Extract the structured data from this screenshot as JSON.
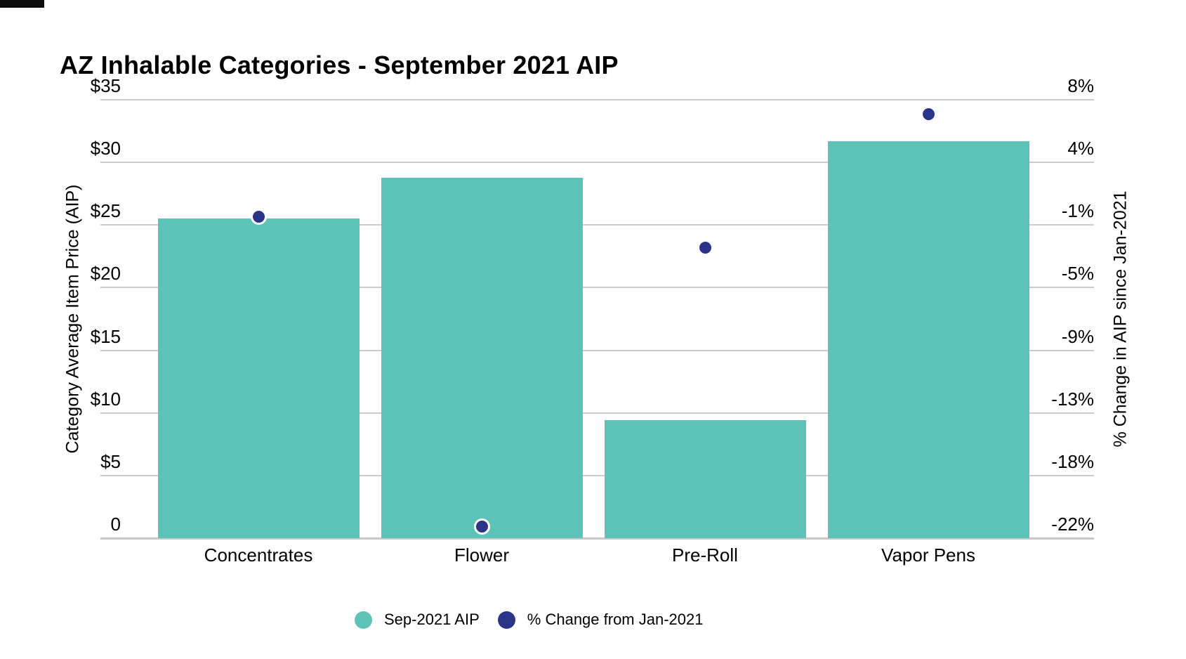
{
  "chart_data": {
    "type": "bar",
    "title": "AZ Inhalable Categories - September 2021 AIP",
    "categories": [
      "Concentrates",
      "Flower",
      "Pre-Roll",
      "Vapor Pens"
    ],
    "series": [
      {
        "name": "Sep-2021 AIP",
        "type": "bar",
        "axis": "left",
        "color": "#5DC2B8",
        "values": [
          25.5,
          28.8,
          9.4,
          31.7
        ]
      },
      {
        "name": "% Change from Jan-2021",
        "type": "point",
        "axis": "right",
        "color": "#2B3588",
        "values": [
          0.0,
          -21.2,
          -2.1,
          7.0
        ]
      }
    ],
    "left_axis": {
      "title": "Category Average Item Price (AIP)",
      "min": 0,
      "max": 35,
      "ticks": [
        {
          "label": "$35",
          "value": 35
        },
        {
          "label": "$30",
          "value": 30
        },
        {
          "label": "$25",
          "value": 25
        },
        {
          "label": "$20",
          "value": 20
        },
        {
          "label": "$15",
          "value": 15
        },
        {
          "label": "$10",
          "value": 10
        },
        {
          "label": "$5",
          "value": 5
        },
        {
          "label": "0",
          "value": 0
        }
      ]
    },
    "right_axis": {
      "title": "% Change in AIP since Jan-2021",
      "min": -22,
      "max": 8,
      "ticks": [
        {
          "label": "8%",
          "value": 8
        },
        {
          "label": "4%",
          "value": 4
        },
        {
          "label": "-1%",
          "value": -1
        },
        {
          "label": "-5%",
          "value": -5
        },
        {
          "label": "-9%",
          "value": -9
        },
        {
          "label": "-13%",
          "value": -13
        },
        {
          "label": "-18%",
          "value": -18
        },
        {
          "label": "-22%",
          "value": -22
        }
      ]
    },
    "legend": {
      "position": "bottom"
    },
    "grid": true,
    "colors": {
      "bar": "#5DC2B8",
      "point": "#2B3588",
      "gridline": "#cccccc",
      "text": "#000000",
      "background": "#ffffff"
    }
  }
}
